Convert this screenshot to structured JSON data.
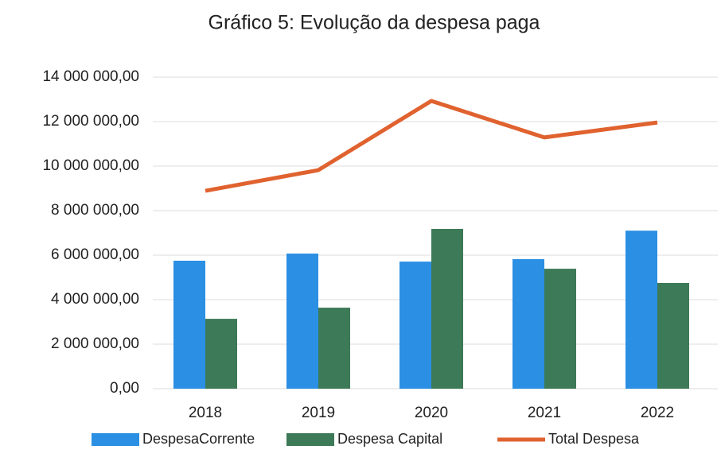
{
  "chart_data": {
    "type": "bar",
    "title": "Gráfico 5: Evolução da despesa paga",
    "categories": [
      "2018",
      "2019",
      "2020",
      "2021",
      "2022"
    ],
    "series": [
      {
        "name": "DespesaCorrente",
        "color": "#2b8fe3",
        "type": "bar",
        "values": [
          5750000,
          6070000,
          5710000,
          5820000,
          7100000
        ]
      },
      {
        "name": "Despesa Capital",
        "color": "#3d7a57",
        "type": "bar",
        "values": [
          3140000,
          3640000,
          7180000,
          5390000,
          4750000
        ]
      },
      {
        "name": "Total Despesa",
        "color": "#e0622f",
        "type": "line",
        "values": [
          8890000,
          9820000,
          12930000,
          11290000,
          11960000
        ]
      }
    ],
    "ylim": [
      0,
      14000000
    ],
    "yticks": [
      {
        "value": 0,
        "label": "0,00"
      },
      {
        "value": 2000000,
        "label": "2 000 000,00"
      },
      {
        "value": 4000000,
        "label": "4 000 000,00"
      },
      {
        "value": 6000000,
        "label": "6 000 000,00"
      },
      {
        "value": 8000000,
        "label": "8 000 000,00"
      },
      {
        "value": 10000000,
        "label": "10 000 000,00"
      },
      {
        "value": 12000000,
        "label": "12 000 000,00"
      },
      {
        "value": 14000000,
        "label": "14 000 000,00"
      }
    ],
    "grid": true,
    "legend": "bottom"
  }
}
